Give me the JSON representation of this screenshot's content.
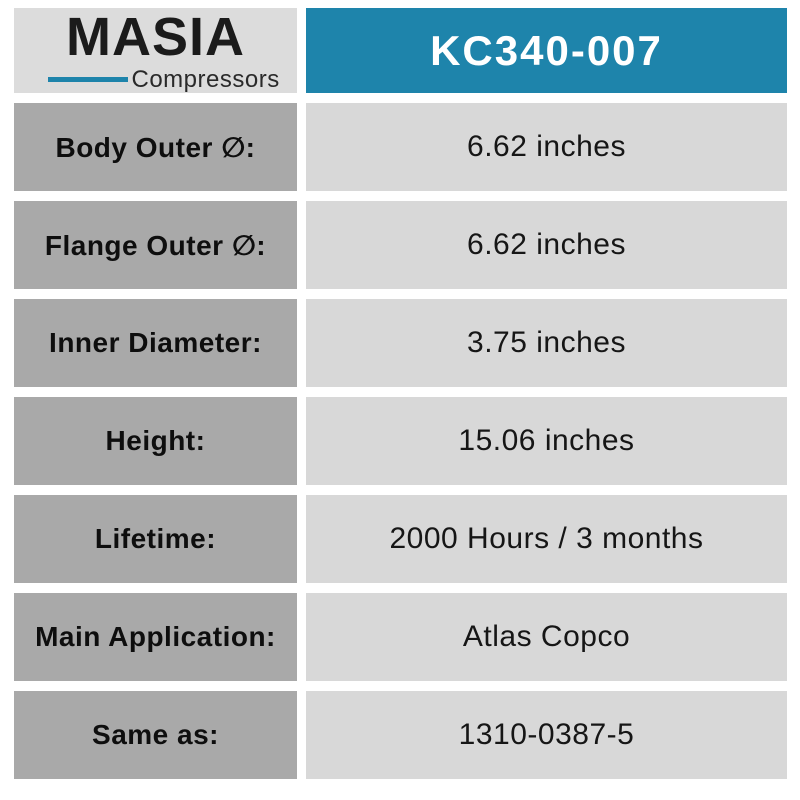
{
  "logo": {
    "brand": "MASIA",
    "tagline": "Compressors"
  },
  "header": {
    "part_number": "KC340-007"
  },
  "specs": [
    {
      "label": "Body Outer ∅:",
      "value": "6.62 inches"
    },
    {
      "label": "Flange Outer ∅:",
      "value": "6.62 inches"
    },
    {
      "label": "Inner Diameter:",
      "value": "3.75 inches"
    },
    {
      "label": "Height:",
      "value": "15.06 inches"
    },
    {
      "label": "Lifetime:",
      "value": "2000 Hours / 3 months"
    },
    {
      "label": "Main Application:",
      "value": "Atlas Copco"
    },
    {
      "label": "Same as:",
      "value": "1310-0387-5"
    }
  ],
  "colors": {
    "accent_teal": "#1e84ab",
    "label_bg": "#a9a9a9",
    "value_bg": "#d8d8d8",
    "logo_bg": "#dcdcdc",
    "text": "#111111",
    "header_text": "#ffffff"
  }
}
